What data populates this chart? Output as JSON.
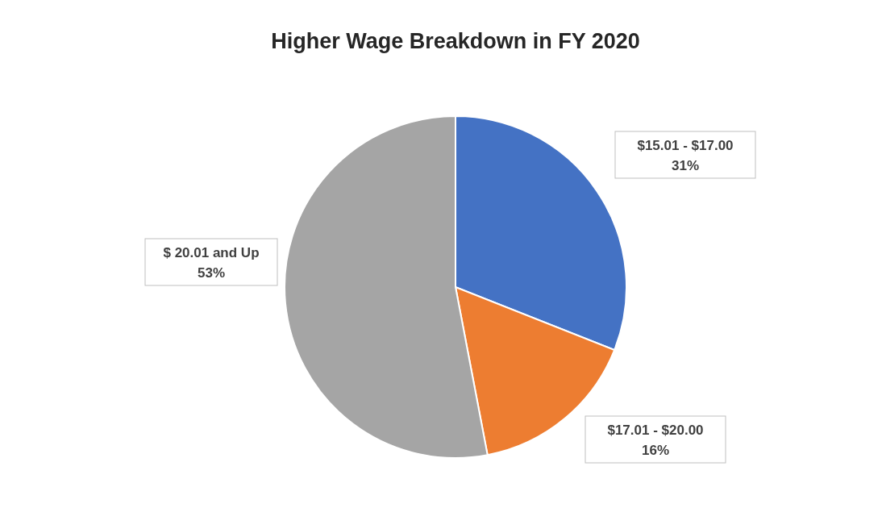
{
  "chart_data": {
    "type": "pie",
    "title": "Higher Wage Breakdown in FY 2020",
    "categories": [
      "$15.01 - $17.00",
      "$17.01 - $20.00",
      "$ 20.01 and Up"
    ],
    "values": [
      31,
      16,
      53
    ],
    "colors": [
      "#4472c4",
      "#ed7d31",
      "#a5a5a5"
    ],
    "value_labels": [
      "31%",
      "16%",
      "53%"
    ]
  }
}
